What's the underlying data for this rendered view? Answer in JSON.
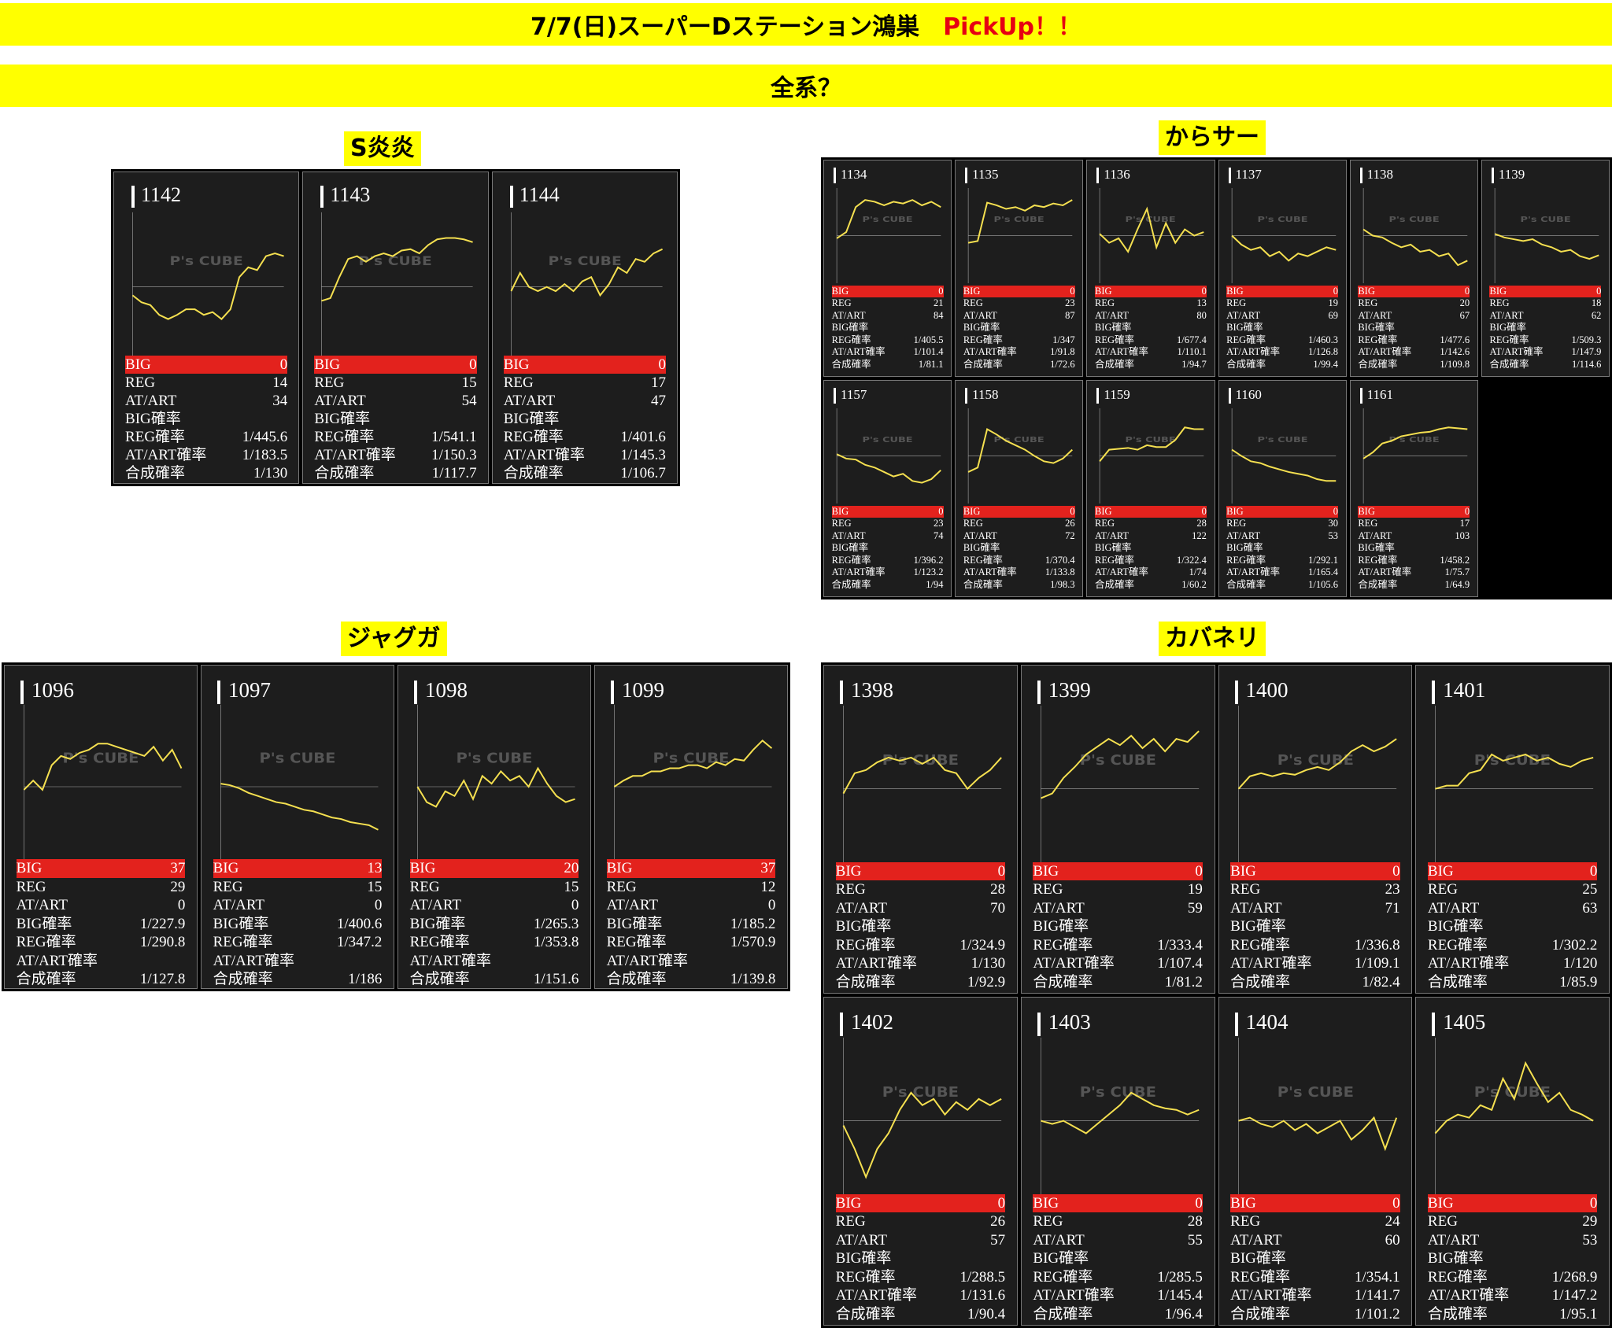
{
  "header": {
    "title": "7/7(日)スーパーDステーション鴻巣",
    "pickup": "PickUp！！",
    "subtitle": "全系？"
  },
  "watermark": "P's CUBE",
  "labels": {
    "big": "BIG",
    "reg": "REG",
    "at": "AT/ART",
    "big_rate": "BIG確率",
    "reg_rate": "REG確率",
    "at_rate": "AT/ART確率",
    "total_rate": "合成確率"
  },
  "colors": {
    "banner": "#ffff00",
    "pickup": "#e60012",
    "big_bar": "#e3221d",
    "line": "#f5e050",
    "card_bg": "#1d1d1d"
  },
  "sections": [
    {
      "id": "s-enen",
      "title": "S炎炎",
      "machines": [
        {
          "num": "1142",
          "big": "0",
          "reg": "14",
          "at": "34",
          "big_rate": "",
          "reg_rate": "1/445.6",
          "at_rate": "1/183.5",
          "total_rate": "1/130",
          "graph": [
            0.42,
            0.37,
            0.35,
            0.28,
            0.25,
            0.28,
            0.32,
            0.32,
            0.28,
            0.3,
            0.25,
            0.32,
            0.55,
            0.62,
            0.6,
            0.7,
            0.72,
            0.7
          ]
        },
        {
          "num": "1143",
          "big": "0",
          "reg": "15",
          "at": "54",
          "big_rate": "",
          "reg_rate": "1/541.1",
          "at_rate": "1/150.3",
          "total_rate": "1/117.7",
          "graph": [
            0.38,
            0.4,
            0.55,
            0.68,
            0.7,
            0.66,
            0.7,
            0.72,
            0.7,
            0.74,
            0.75,
            0.72,
            0.78,
            0.82,
            0.83,
            0.83,
            0.82,
            0.8
          ]
        },
        {
          "num": "1144",
          "big": "0",
          "reg": "17",
          "at": "47",
          "big_rate": "",
          "reg_rate": "1/401.6",
          "at_rate": "1/145.3",
          "total_rate": "1/106.7",
          "graph": [
            0.45,
            0.58,
            0.48,
            0.45,
            0.48,
            0.45,
            0.5,
            0.45,
            0.52,
            0.55,
            0.42,
            0.5,
            0.62,
            0.58,
            0.68,
            0.66,
            0.72,
            0.75
          ]
        }
      ]
    },
    {
      "id": "karasa",
      "title": "からサー",
      "machines": [
        {
          "num": "1134",
          "big": "0",
          "reg": "21",
          "at": "84",
          "big_rate": "",
          "reg_rate": "1/405.5",
          "at_rate": "1/101.4",
          "total_rate": "1/81.1",
          "graph": [
            0.45,
            0.52,
            0.8,
            0.88,
            0.86,
            0.82,
            0.86,
            0.84,
            0.88,
            0.82,
            0.86,
            0.8
          ]
        },
        {
          "num": "1135",
          "big": "0",
          "reg": "23",
          "at": "87",
          "big_rate": "",
          "reg_rate": "1/347",
          "at_rate": "1/91.8",
          "total_rate": "1/72.6",
          "graph": [
            0.4,
            0.42,
            0.85,
            0.82,
            0.78,
            0.8,
            0.76,
            0.82,
            0.8,
            0.84,
            0.82,
            0.88
          ]
        },
        {
          "num": "1136",
          "big": "0",
          "reg": "13",
          "at": "80",
          "big_rate": "",
          "reg_rate": "1/677.4",
          "at_rate": "1/110.1",
          "total_rate": "1/94.7",
          "graph": [
            0.5,
            0.4,
            0.45,
            0.3,
            0.55,
            0.78,
            0.35,
            0.62,
            0.4,
            0.55,
            0.48,
            0.52
          ]
        },
        {
          "num": "1137",
          "big": "0",
          "reg": "19",
          "at": "69",
          "big_rate": "",
          "reg_rate": "1/460.3",
          "at_rate": "1/126.8",
          "total_rate": "1/99.4",
          "graph": [
            0.48,
            0.38,
            0.32,
            0.35,
            0.25,
            0.3,
            0.2,
            0.28,
            0.25,
            0.3,
            0.35,
            0.32
          ]
        },
        {
          "num": "1138",
          "big": "0",
          "reg": "20",
          "at": "67",
          "big_rate": "",
          "reg_rate": "1/477.6",
          "at_rate": "1/142.6",
          "total_rate": "1/109.8",
          "graph": [
            0.55,
            0.48,
            0.46,
            0.4,
            0.35,
            0.38,
            0.3,
            0.32,
            0.25,
            0.28,
            0.15,
            0.2
          ]
        },
        {
          "num": "1139",
          "big": "0",
          "reg": "18",
          "at": "62",
          "big_rate": "",
          "reg_rate": "1/509.3",
          "at_rate": "1/147.9",
          "total_rate": "1/114.6",
          "graph": [
            0.5,
            0.46,
            0.44,
            0.42,
            0.44,
            0.38,
            0.35,
            0.3,
            0.32,
            0.25,
            0.22,
            0.26
          ]
        },
        {
          "num": "1157",
          "big": "0",
          "reg": "23",
          "at": "74",
          "big_rate": "",
          "reg_rate": "1/396.2",
          "at_rate": "1/123.2",
          "total_rate": "1/94",
          "graph": [
            0.5,
            0.45,
            0.44,
            0.38,
            0.35,
            0.3,
            0.25,
            0.28,
            0.2,
            0.18,
            0.22,
            0.32
          ]
        },
        {
          "num": "1158",
          "big": "0",
          "reg": "26",
          "at": "72",
          "big_rate": "",
          "reg_rate": "1/370.4",
          "at_rate": "1/133.8",
          "total_rate": "1/98.3",
          "graph": [
            0.3,
            0.35,
            0.78,
            0.72,
            0.65,
            0.6,
            0.55,
            0.48,
            0.42,
            0.4,
            0.45,
            0.55
          ]
        },
        {
          "num": "1159",
          "big": "0",
          "reg": "28",
          "at": "122",
          "big_rate": "",
          "reg_rate": "1/322.4",
          "at_rate": "1/74",
          "total_rate": "1/60.2",
          "graph": [
            0.42,
            0.55,
            0.56,
            0.57,
            0.55,
            0.6,
            0.58,
            0.58,
            0.66,
            0.8,
            0.78,
            0.78
          ]
        },
        {
          "num": "1160",
          "big": "0",
          "reg": "30",
          "at": "53",
          "big_rate": "",
          "reg_rate": "1/292.1",
          "at_rate": "1/165.4",
          "total_rate": "1/105.6",
          "graph": [
            0.55,
            0.48,
            0.42,
            0.4,
            0.36,
            0.33,
            0.3,
            0.28,
            0.26,
            0.22,
            0.2,
            0.2
          ]
        },
        {
          "num": "1161",
          "big": "0",
          "reg": "17",
          "at": "103",
          "big_rate": "",
          "reg_rate": "1/458.2",
          "at_rate": "1/75.7",
          "total_rate": "1/64.9",
          "graph": [
            0.45,
            0.52,
            0.62,
            0.65,
            0.7,
            0.72,
            0.74,
            0.75,
            0.78,
            0.8,
            0.79,
            0.78
          ]
        }
      ]
    },
    {
      "id": "jagugu",
      "title": "ジャグガ",
      "machines": [
        {
          "num": "1096",
          "big": "37",
          "reg": "29",
          "at": "0",
          "big_rate": "1/227.9",
          "reg_rate": "1/290.8",
          "at_rate": "",
          "total_rate": "1/127.8",
          "graph": [
            0.46,
            0.52,
            0.46,
            0.62,
            0.68,
            0.66,
            0.7,
            0.72,
            0.76,
            0.76,
            0.74,
            0.72,
            0.7,
            0.68,
            0.74,
            0.65,
            0.72,
            0.6
          ]
        },
        {
          "num": "1097",
          "big": "13",
          "reg": "15",
          "at": "0",
          "big_rate": "1/400.6",
          "reg_rate": "1/347.2",
          "at_rate": "",
          "total_rate": "1/186",
          "graph": [
            0.5,
            0.49,
            0.47,
            0.44,
            0.42,
            0.4,
            0.38,
            0.37,
            0.35,
            0.33,
            0.32,
            0.3,
            0.28,
            0.27,
            0.25,
            0.24,
            0.23,
            0.2
          ]
        },
        {
          "num": "1098",
          "big": "20",
          "reg": "15",
          "at": "0",
          "big_rate": "1/265.3",
          "reg_rate": "1/353.8",
          "at_rate": "",
          "total_rate": "1/151.6",
          "graph": [
            0.48,
            0.38,
            0.35,
            0.45,
            0.42,
            0.52,
            0.4,
            0.55,
            0.5,
            0.58,
            0.52,
            0.55,
            0.48,
            0.6,
            0.5,
            0.42,
            0.38,
            0.4
          ]
        },
        {
          "num": "1099",
          "big": "37",
          "reg": "12",
          "at": "0",
          "big_rate": "1/185.2",
          "reg_rate": "1/570.9",
          "at_rate": "",
          "total_rate": "1/139.8",
          "graph": [
            0.48,
            0.52,
            0.55,
            0.55,
            0.58,
            0.58,
            0.6,
            0.6,
            0.62,
            0.62,
            0.6,
            0.64,
            0.62,
            0.66,
            0.65,
            0.72,
            0.78,
            0.73
          ]
        }
      ]
    },
    {
      "id": "kabaneri",
      "title": "カバネリ",
      "machines": [
        {
          "num": "1398",
          "big": "0",
          "reg": "28",
          "at": "70",
          "big_rate": "",
          "reg_rate": "1/324.9",
          "at_rate": "1/130",
          "total_rate": "1/92.9",
          "graph": [
            0.45,
            0.58,
            0.6,
            0.65,
            0.68,
            0.66,
            0.68,
            0.64,
            0.68,
            0.6,
            0.58,
            0.48,
            0.55,
            0.6,
            0.68
          ]
        },
        {
          "num": "1399",
          "big": "0",
          "reg": "19",
          "at": "59",
          "big_rate": "",
          "reg_rate": "1/333.4",
          "at_rate": "1/107.4",
          "total_rate": "1/81.2",
          "graph": [
            0.42,
            0.45,
            0.55,
            0.62,
            0.7,
            0.75,
            0.8,
            0.76,
            0.82,
            0.74,
            0.8,
            0.72,
            0.8,
            0.78,
            0.85
          ]
        },
        {
          "num": "1400",
          "big": "0",
          "reg": "23",
          "at": "71",
          "big_rate": "",
          "reg_rate": "1/336.8",
          "at_rate": "1/109.1",
          "total_rate": "1/82.4",
          "graph": [
            0.48,
            0.56,
            0.58,
            0.56,
            0.58,
            0.57,
            0.6,
            0.62,
            0.6,
            0.65,
            0.72,
            0.76,
            0.72,
            0.75,
            0.8
          ]
        },
        {
          "num": "1401",
          "big": "0",
          "reg": "25",
          "at": "63",
          "big_rate": "",
          "reg_rate": "1/302.2",
          "at_rate": "1/120",
          "total_rate": "1/85.9",
          "graph": [
            0.48,
            0.5,
            0.5,
            0.58,
            0.6,
            0.7,
            0.66,
            0.68,
            0.7,
            0.66,
            0.68,
            0.64,
            0.62,
            0.66,
            0.68
          ]
        },
        {
          "num": "1402",
          "big": "0",
          "reg": "26",
          "at": "57",
          "big_rate": "",
          "reg_rate": "1/288.5",
          "at_rate": "1/131.6",
          "total_rate": "1/90.4",
          "graph": [
            0.45,
            0.3,
            0.12,
            0.3,
            0.4,
            0.55,
            0.66,
            0.58,
            0.62,
            0.52,
            0.6,
            0.55,
            0.62,
            0.58,
            0.62
          ]
        },
        {
          "num": "1403",
          "big": "0",
          "reg": "28",
          "at": "55",
          "big_rate": "",
          "reg_rate": "1/285.5",
          "at_rate": "1/145.4",
          "total_rate": "1/96.4",
          "graph": [
            0.48,
            0.46,
            0.48,
            0.44,
            0.4,
            0.46,
            0.52,
            0.58,
            0.66,
            0.62,
            0.58,
            0.56,
            0.55,
            0.52,
            0.55
          ]
        },
        {
          "num": "1404",
          "big": "0",
          "reg": "24",
          "at": "60",
          "big_rate": "",
          "reg_rate": "1/354.1",
          "at_rate": "1/141.7",
          "total_rate": "1/101.2",
          "graph": [
            0.48,
            0.5,
            0.46,
            0.44,
            0.48,
            0.42,
            0.46,
            0.4,
            0.44,
            0.48,
            0.36,
            0.42,
            0.5,
            0.3,
            0.5
          ]
        },
        {
          "num": "1405",
          "big": "0",
          "reg": "29",
          "at": "53",
          "big_rate": "",
          "reg_rate": "1/268.9",
          "at_rate": "1/147.2",
          "total_rate": "1/95.1",
          "graph": [
            0.4,
            0.48,
            0.52,
            0.5,
            0.58,
            0.55,
            0.75,
            0.62,
            0.85,
            0.72,
            0.6,
            0.66,
            0.55,
            0.52,
            0.48
          ]
        }
      ]
    }
  ]
}
